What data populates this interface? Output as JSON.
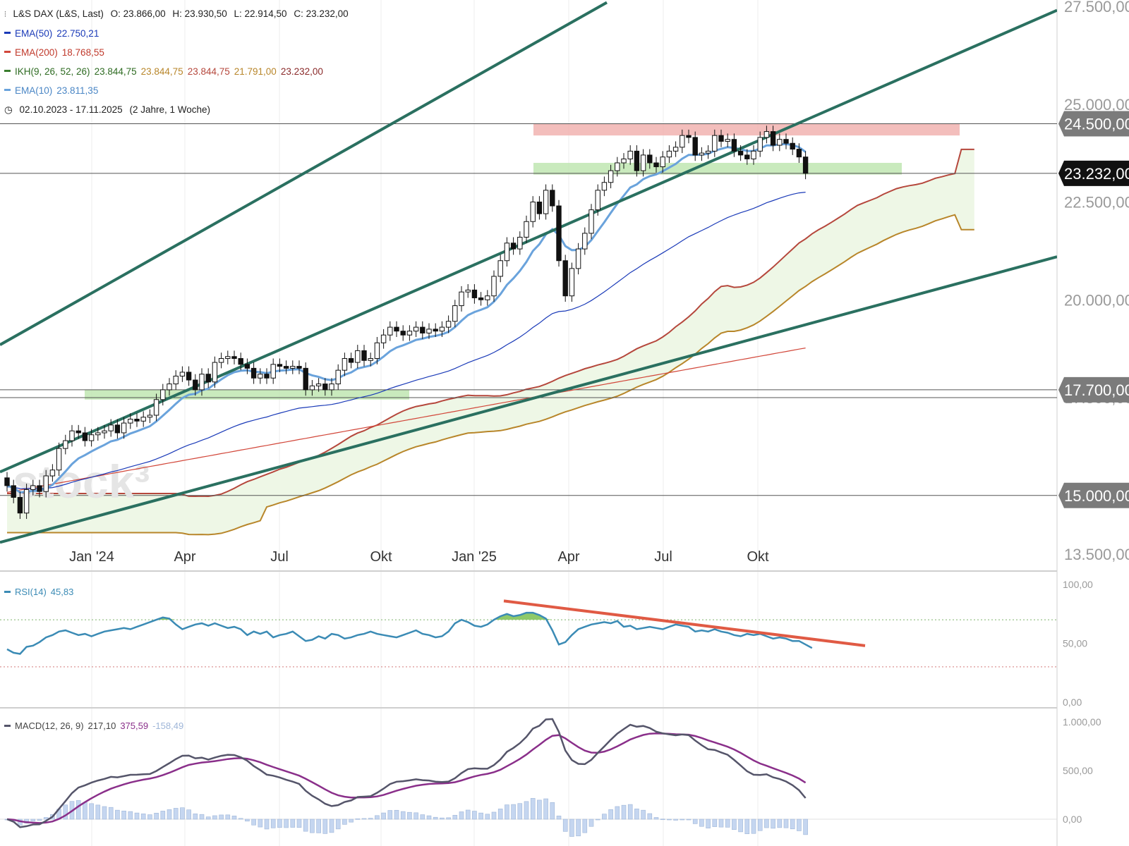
{
  "header": {
    "instrument_icon": "candlestick-icon",
    "instrument": "L&S DAX (L&S, Last)",
    "o": "O: 23.866,00",
    "h": "H: 23.930,50",
    "l": "L: 22.914,50",
    "c": "C: 23.232,00",
    "period_icon": "clock-icon",
    "period": "02.10.2023 - 17.11.2025",
    "period_span": "(2 Jahre, 1 Woche)"
  },
  "indicators": {
    "ema50": {
      "label": "EMA(50)",
      "value": "22.750,21",
      "color": "#1a3ab8"
    },
    "ema200": {
      "label": "EMA(200)",
      "value": "18.768,55",
      "color": "#d2473a"
    },
    "ikh": {
      "label": "IKH(9, 26, 52, 26)",
      "v1": "23.844,75",
      "v2": "23.844,75",
      "v3": "23.844,75",
      "v4": "21.791,00",
      "v5": "23.232,00",
      "color": "#3a7d2e"
    },
    "ema10": {
      "label": "EMA(10)",
      "value": "23.811,35",
      "color": "#6aa3dc"
    },
    "rsi": {
      "label": "RSI(14)",
      "value": "45,83",
      "color": "#3b8bb5"
    },
    "macd": {
      "label": "MACD(12, 26, 9)",
      "v1": "217,10",
      "v2": "375,59",
      "v3": "-158,49",
      "color_macd": "#55556a",
      "color_signal": "#8a2f8a",
      "color_hist": "#a9c3ea"
    }
  },
  "watermark": "stock³",
  "chart_data": [
    {
      "type": "candlestick",
      "title": "L&S DAX (L&S, Last)",
      "period": "02.10.2023 - 17.11.2025",
      "ylim": [
        13500,
        27500
      ],
      "y_ticks": [
        "27.500,00",
        "25.000,00",
        "22.500,00",
        "20.000,00",
        "17.500,00",
        "15.000,00",
        "13.500,00"
      ],
      "x_ticks": [
        "Jan '24",
        "Apr",
        "Jul",
        "Okt",
        "Jan '25",
        "Apr",
        "Jul",
        "Okt"
      ],
      "price_labels": [
        {
          "text": "24.500,00",
          "bg": "#7b7b7b"
        },
        {
          "text": "23.232,00",
          "bg": "#111111"
        },
        {
          "text": "17.700,00",
          "bg": "#7b7b7b"
        },
        {
          "text": "15.000,00",
          "bg": "#7b7b7b"
        }
      ],
      "horizontal_lines": [
        24500,
        23232,
        17700,
        17500,
        15000
      ],
      "zones": [
        {
          "from": 24200,
          "to": 24500,
          "color": "#f1b3b0"
        },
        {
          "from": 23200,
          "to": 23500,
          "color": "#bfe6b1"
        },
        {
          "from": 17450,
          "to": 17700,
          "color": "#bfe6b1"
        }
      ],
      "trend_channel": "upward",
      "close": [
        15250,
        14950,
        14550,
        15150,
        15250,
        15100,
        15500,
        15650,
        16200,
        16400,
        16650,
        16600,
        16400,
        16550,
        16600,
        16650,
        16800,
        16600,
        16850,
        16950,
        16900,
        17000,
        17050,
        17450,
        17700,
        17850,
        18050,
        18150,
        17950,
        17700,
        18100,
        17900,
        18400,
        18500,
        18550,
        18500,
        18350,
        18250,
        18000,
        18100,
        18000,
        18350,
        18300,
        18250,
        18300,
        18250,
        17700,
        17800,
        17850,
        17700,
        17850,
        18200,
        18500,
        18400,
        18700,
        18450,
        18500,
        18900,
        19100,
        19300,
        19200,
        19100,
        19200,
        19300,
        19150,
        19250,
        19200,
        19300,
        19450,
        19850,
        20200,
        20250,
        20050,
        20000,
        20100,
        20600,
        21000,
        21450,
        21300,
        21600,
        22000,
        22500,
        22200,
        22800,
        22400,
        21000,
        20100,
        20800,
        21300,
        21700,
        22300,
        22800,
        23000,
        23300,
        23500,
        23600,
        23800,
        23300,
        23700,
        23500,
        23400,
        23650,
        23800,
        23900,
        24200,
        24150,
        23700,
        23750,
        23800,
        24200,
        24050,
        24100,
        23800,
        23700,
        23600,
        23800,
        24150,
        24300,
        23950,
        24100,
        24000,
        23850,
        23650,
        23232
      ],
      "series": [
        {
          "name": "EMA(50)",
          "last": 22750
        },
        {
          "name": "EMA(200)",
          "last": 18769
        },
        {
          "name": "EMA(10)",
          "last": 23811
        },
        {
          "name": "IKH Senkou A",
          "last": 23845
        },
        {
          "name": "IKH Senkou B",
          "last": 21791
        }
      ]
    },
    {
      "type": "line",
      "title": "RSI(14)",
      "ylim": [
        0,
        100
      ],
      "y_ticks": [
        "100,00",
        "50,00",
        "0,00"
      ],
      "levels": [
        70,
        30
      ],
      "last": 45.83,
      "values": [
        45,
        42,
        41,
        47,
        48,
        51,
        55,
        57,
        60,
        61,
        59,
        57,
        58,
        56,
        58,
        60,
        61,
        62,
        63,
        62,
        64,
        66,
        68,
        70,
        72,
        71,
        66,
        62,
        64,
        66,
        67,
        65,
        67,
        65,
        63,
        64,
        62,
        57,
        60,
        58,
        60,
        55,
        57,
        58,
        60,
        56,
        52,
        53,
        56,
        54,
        58,
        57,
        54,
        55,
        57,
        58,
        60,
        58,
        57,
        56,
        55,
        57,
        59,
        61,
        58,
        57,
        55,
        56,
        60,
        67,
        70,
        68,
        65,
        64,
        66,
        70,
        73,
        75,
        73,
        74,
        76,
        76,
        74,
        71,
        61,
        49,
        51,
        57,
        62,
        64,
        66,
        67,
        68,
        67,
        69,
        64,
        65,
        62,
        63,
        64,
        63,
        62,
        64,
        66,
        65,
        64,
        60,
        61,
        60,
        62,
        60,
        59,
        57,
        56,
        58,
        57,
        58,
        56,
        54,
        55,
        54,
        52,
        52,
        49,
        46
      ],
      "trendline": "descending"
    },
    {
      "type": "line",
      "title": "MACD(12, 26, 9)",
      "ylim": [
        -150,
        1050
      ],
      "y_ticks": [
        "1.000,00",
        "500,00",
        "0,00"
      ],
      "last_macd": 217.1,
      "last_signal": 375.59,
      "last_histogram": -158.49
    }
  ]
}
